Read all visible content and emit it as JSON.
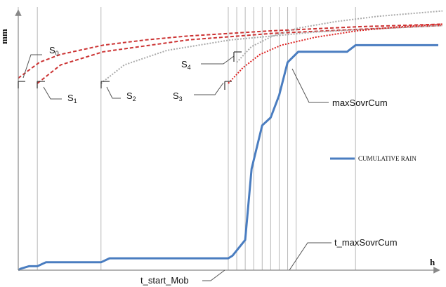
{
  "chart_data": {
    "type": "line",
    "title": "",
    "xlabel": "h",
    "ylabel": "mm",
    "grid": false,
    "legend": "right",
    "xlim": [
      0,
      100
    ],
    "ylim": [
      0,
      100
    ],
    "series": [
      {
        "name": "CUMULATIVE RAIN",
        "color": "#4a7dc0",
        "x": [
          0,
          0.5,
          2.5,
          4.5,
          6.5,
          19.5,
          21.5,
          49.5,
          50.5,
          53.5,
          55,
          57.5,
          59.5,
          61.5,
          63.5,
          66,
          67.5,
          77.5,
          79.5,
          99
        ],
        "y": [
          0,
          0.5,
          1.5,
          1.5,
          3,
          3,
          4.5,
          4.5,
          5.5,
          11.5,
          38.5,
          55,
          58,
          66.5,
          79,
          83,
          83,
          83,
          85.5,
          85.5
        ]
      }
    ],
    "threshold_curves": [
      {
        "id": "S0",
        "style": "dashed",
        "color": "#cc3333",
        "x": [
          0,
          5,
          10,
          20,
          30,
          40,
          60,
          80,
          100
        ],
        "y": [
          73,
          79,
          82,
          85.5,
          87.5,
          89,
          91,
          92.5,
          93.5
        ]
      },
      {
        "id": "S1",
        "style": "dashed",
        "color": "#cc3333",
        "x": [
          4.5,
          10,
          20,
          40,
          60,
          100
        ],
        "y": [
          71,
          78,
          83,
          87.5,
          90,
          93
        ]
      },
      {
        "id": "S2",
        "style": "dotted",
        "color": "#aaaaaa",
        "x": [
          19.5,
          25,
          35,
          50,
          70,
          100
        ],
        "y": [
          71,
          78,
          83.5,
          87.5,
          90.5,
          93
        ]
      },
      {
        "id": "S3",
        "style": "dotted",
        "color": "#dd2222",
        "x": [
          49.5,
          53,
          57,
          62,
          70,
          80,
          90,
          100
        ],
        "y": [
          71,
          77,
          82,
          85.5,
          88.5,
          91,
          92.5,
          93.5
        ]
      },
      {
        "id": "S4",
        "style": "dotted",
        "color": "#aaaaaa",
        "x": [
          51.5,
          55,
          60,
          66,
          75,
          85,
          100
        ],
        "y": [
          79,
          85,
          89,
          92,
          94.5,
          96.5,
          98.5
        ]
      }
    ],
    "vertical_markers": [
      0,
      4.5,
      19.5,
      49.5,
      51.5,
      53.5,
      55.5,
      57.5,
      59.5,
      61.5,
      63.5,
      65.5,
      79.5
    ],
    "annotations": [
      "S0",
      "S1",
      "S2",
      "S3",
      "S4",
      "maxSovrCum",
      "t_maxSovrCum",
      "t_start_Mob"
    ]
  }
}
